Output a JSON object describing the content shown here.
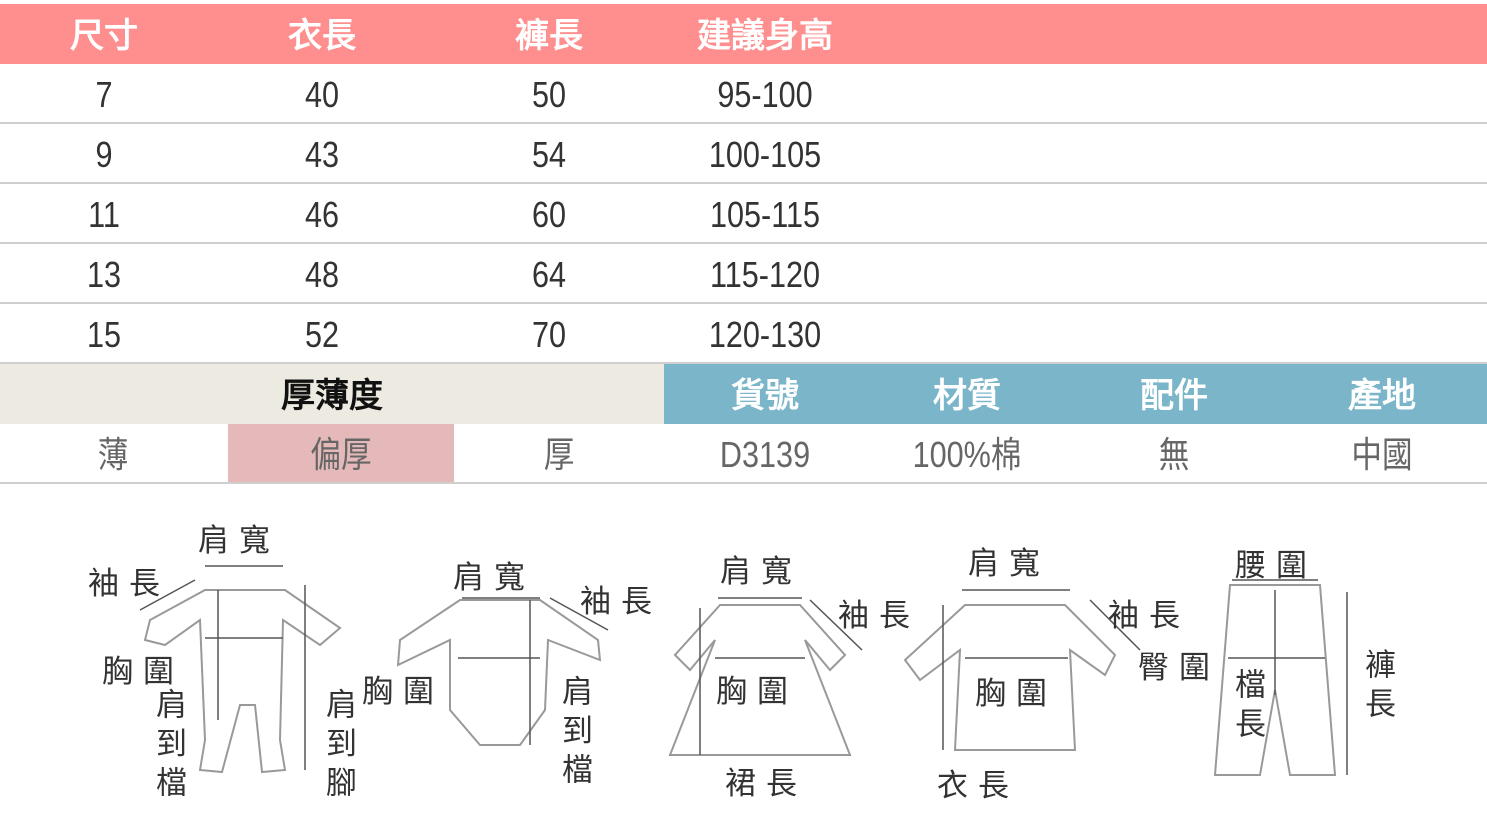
{
  "size_table": {
    "header_color": "#ff8f8f",
    "headers": [
      "尺寸",
      "衣長",
      "褲長",
      "建議身高"
    ],
    "rows": [
      [
        "7",
        "40",
        "50",
        "95-100"
      ],
      [
        "9",
        "43",
        "54",
        "100-105"
      ],
      [
        "11",
        "46",
        "60",
        "105-115"
      ],
      [
        "13",
        "48",
        "64",
        "115-120"
      ],
      [
        "15",
        "52",
        "70",
        "120-130"
      ]
    ]
  },
  "info_table": {
    "thickness_header": "厚薄度",
    "thickness_options": [
      "薄",
      "偏厚",
      "厚"
    ],
    "thickness_selected": "偏厚",
    "headers": [
      "貨號",
      "材質",
      "配件",
      "產地"
    ],
    "values": [
      "D3139",
      "100%棉",
      "無",
      "中國"
    ],
    "colors": {
      "thickness_bg": "#edebe1",
      "info_bg": "#7ab5c9",
      "selected_bg": "#e5b9b9"
    }
  },
  "diagrams": {
    "romper": {
      "shoulder": "肩寬",
      "sleeve": "袖長",
      "chest": "胸圍",
      "shoulder_crotch": "肩到檔",
      "shoulder_foot": "肩到腳"
    },
    "bodysuit": {
      "shoulder": "肩寬",
      "sleeve": "袖長",
      "chest": "胸圍",
      "shoulder_crotch": "肩到檔"
    },
    "dress": {
      "shoulder": "肩寬",
      "sleeve": "袖長",
      "chest": "胸圍",
      "skirt_length": "裙長"
    },
    "shirt": {
      "shoulder": "肩寬",
      "sleeve": "袖長",
      "chest": "胸圍",
      "length": "衣長"
    },
    "pants": {
      "waist": "腰圍",
      "hip": "臀圍",
      "crotch": "檔長",
      "length": "褲長"
    }
  }
}
